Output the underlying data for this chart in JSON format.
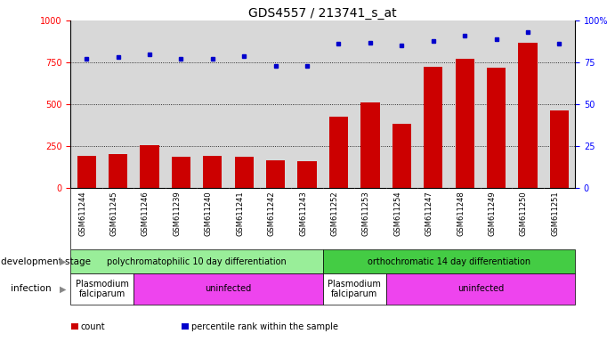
{
  "title": "GDS4557 / 213741_s_at",
  "samples": [
    "GSM611244",
    "GSM611245",
    "GSM611246",
    "GSM611239",
    "GSM611240",
    "GSM611241",
    "GSM611242",
    "GSM611243",
    "GSM611252",
    "GSM611253",
    "GSM611254",
    "GSM611247",
    "GSM611248",
    "GSM611249",
    "GSM611250",
    "GSM611251"
  ],
  "counts": [
    195,
    205,
    255,
    185,
    195,
    185,
    165,
    160,
    425,
    510,
    385,
    725,
    770,
    720,
    870,
    465
  ],
  "percentiles": [
    77,
    78,
    80,
    77,
    77,
    79,
    73,
    73,
    86,
    87,
    85,
    88,
    91,
    89,
    93,
    86
  ],
  "bar_color": "#cc0000",
  "dot_color": "#0000cc",
  "ylim_left": [
    0,
    1000
  ],
  "ylim_right": [
    0,
    100
  ],
  "yticks_left": [
    0,
    250,
    500,
    750,
    1000
  ],
  "yticks_right": [
    0,
    25,
    50,
    75,
    100
  ],
  "ytick_labels_right": [
    "0",
    "25",
    "50",
    "75",
    "100%"
  ],
  "grid_lines": [
    250,
    500,
    750
  ],
  "background_color": "#ffffff",
  "plot_bg_color": "#d8d8d8",
  "dev_stage_groups": [
    {
      "text": "polychromatophilic 10 day differentiation",
      "start": 0,
      "end": 8,
      "color": "#99ee99"
    },
    {
      "text": "orthochromatic 14 day differentiation",
      "start": 8,
      "end": 16,
      "color": "#44cc44"
    }
  ],
  "infection_groups": [
    {
      "text": "Plasmodium\nfalciparum",
      "start": 0,
      "end": 2,
      "color": "#ffffff"
    },
    {
      "text": "uninfected",
      "start": 2,
      "end": 8,
      "color": "#ee44ee"
    },
    {
      "text": "Plasmodium\nfalciparum",
      "start": 8,
      "end": 10,
      "color": "#ffffff"
    },
    {
      "text": "uninfected",
      "start": 10,
      "end": 16,
      "color": "#ee44ee"
    }
  ],
  "dev_stage_label": "development stage",
  "infection_label": "infection",
  "legend_items": [
    {
      "color": "#cc0000",
      "label": "count"
    },
    {
      "color": "#0000cc",
      "label": "percentile rank within the sample"
    }
  ],
  "title_fontsize": 10,
  "tick_fontsize": 7,
  "annotation_fontsize": 7,
  "sample_fontsize": 6
}
